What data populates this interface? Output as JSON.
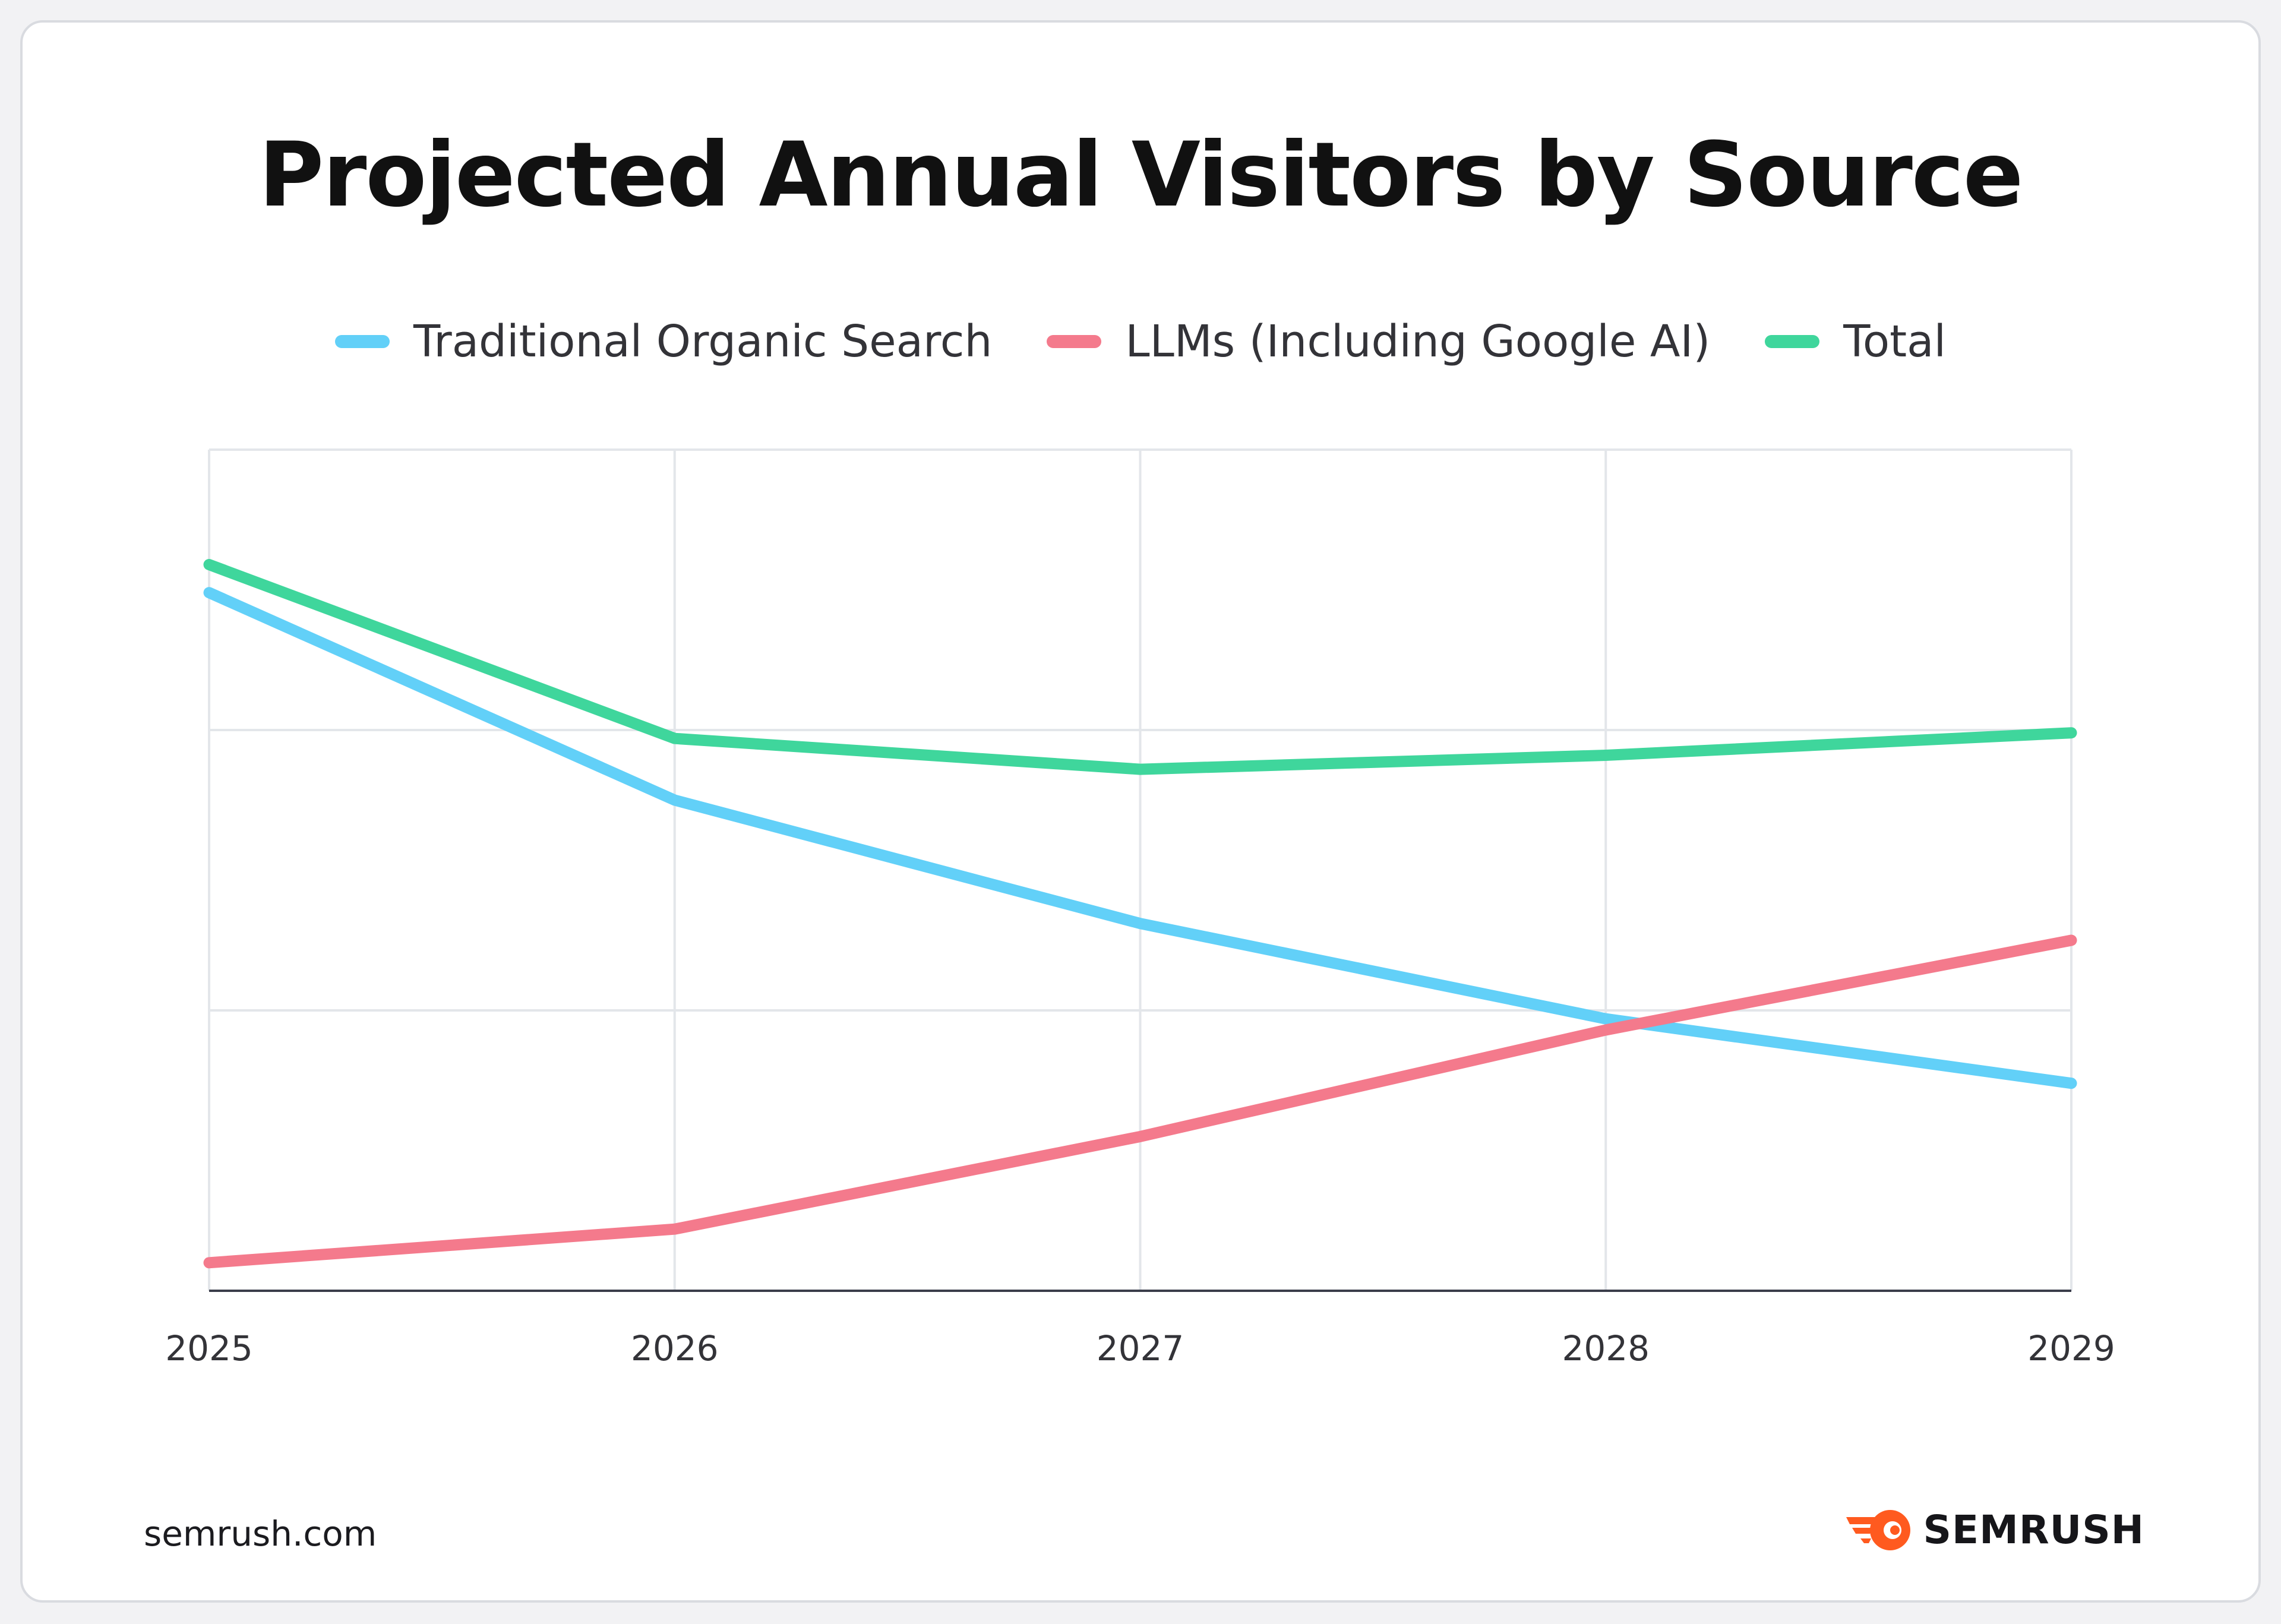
{
  "colors": {
    "background": "#ffffff",
    "grid": "#e3e6ea",
    "axis": "#3a3d4a",
    "organic": "#62d0f8",
    "llm": "#f47a8c",
    "total": "#3fd69c",
    "brand_orange": "#ff5a1f"
  },
  "chart_data": {
    "type": "line",
    "title": "Projected Annual Visitors by Source",
    "xlabel": "",
    "ylabel": "",
    "x": [
      "2025",
      "2026",
      "2027",
      "2028",
      "2029"
    ],
    "ylim": [
      0,
      3
    ],
    "y_gridlines": [
      0,
      1,
      2,
      3
    ],
    "grid": true,
    "y_tick_labels_shown": false,
    "legend_position": "top-center",
    "series": [
      {
        "name": "Traditional Organic Search",
        "color_key": "organic",
        "values": [
          2.49,
          1.75,
          1.31,
          0.97,
          0.74
        ]
      },
      {
        "name": "LLMs (Including Google AI)",
        "color_key": "llm",
        "values": [
          0.1,
          0.22,
          0.55,
          0.93,
          1.25
        ]
      },
      {
        "name": "Total",
        "color_key": "total",
        "values": [
          2.59,
          1.97,
          1.86,
          1.91,
          1.99
        ]
      }
    ]
  },
  "footer": {
    "site": "semrush.com",
    "brand": "SEMRUSH",
    "brand_icon": "semrush-fireball-icon"
  }
}
